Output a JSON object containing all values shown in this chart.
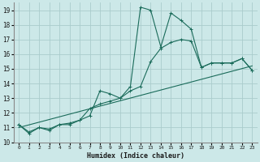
{
  "xlabel": "Humidex (Indice chaleur)",
  "background_color": "#cce8e8",
  "grid_color": "#aacccc",
  "line_color": "#1a6b5a",
  "xlim": [
    -0.5,
    23.5
  ],
  "ylim": [
    10,
    19.5
  ],
  "yticks": [
    10,
    11,
    12,
    13,
    14,
    15,
    16,
    17,
    18,
    19
  ],
  "xticks": [
    0,
    1,
    2,
    3,
    4,
    5,
    6,
    7,
    8,
    9,
    10,
    11,
    12,
    13,
    14,
    15,
    16,
    17,
    18,
    19,
    20,
    21,
    22,
    23
  ],
  "series1_x": [
    0,
    1,
    2,
    3,
    4,
    5,
    6,
    7,
    8,
    9,
    10,
    11,
    12,
    13,
    14,
    15,
    16,
    17,
    18,
    19,
    20,
    21,
    22,
    23
  ],
  "series1_y": [
    11.2,
    10.6,
    11.0,
    10.8,
    11.2,
    11.2,
    11.5,
    11.8,
    13.5,
    13.3,
    13.0,
    13.8,
    19.2,
    19.0,
    16.5,
    18.8,
    18.3,
    17.7,
    15.1,
    15.4,
    15.4,
    15.4,
    15.7,
    14.9
  ],
  "series2_x": [
    0,
    1,
    2,
    3,
    4,
    5,
    6,
    7,
    8,
    9,
    10,
    11,
    12,
    13,
    14,
    15,
    16,
    17,
    18,
    19,
    20,
    21,
    22,
    23
  ],
  "series2_y": [
    11.2,
    10.7,
    11.0,
    10.9,
    11.2,
    11.3,
    11.5,
    12.3,
    12.6,
    12.8,
    13.0,
    13.5,
    13.8,
    15.5,
    16.4,
    16.8,
    17.0,
    16.9,
    15.1,
    15.4,
    15.4,
    15.4,
    15.7,
    14.9
  ],
  "series3_x": [
    0,
    23
  ],
  "series3_y": [
    11.0,
    15.2
  ]
}
